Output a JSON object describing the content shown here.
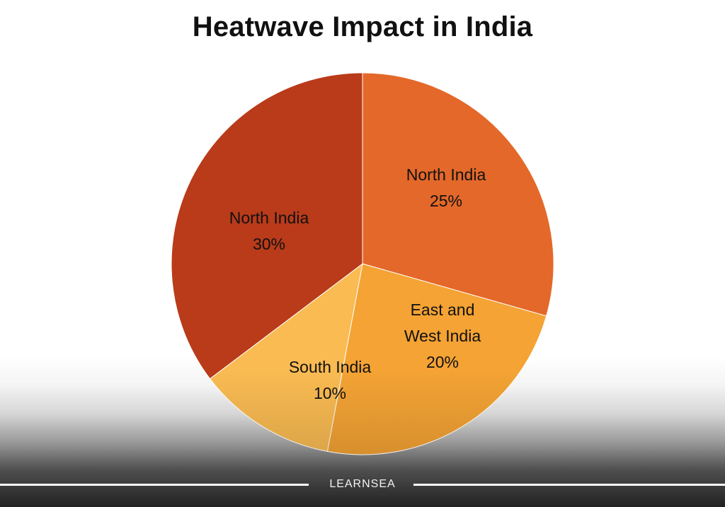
{
  "chart_data": {
    "type": "pie",
    "title": "Heatwave Impact in India",
    "slices": [
      {
        "lines": [
          "North India",
          "25%"
        ],
        "value": 25,
        "color": "#e4682a"
      },
      {
        "lines": [
          "East and",
          "West India",
          "20%"
        ],
        "value": 20,
        "color": "#f4a334"
      },
      {
        "lines": [
          "South India",
          "10%"
        ],
        "value": 10,
        "color": "#f9bb52"
      },
      {
        "lines": [
          "North India",
          "30%"
        ],
        "value": 30,
        "color": "#b93b1a"
      }
    ]
  },
  "footer": {
    "brand": "LEARNSEA"
  }
}
